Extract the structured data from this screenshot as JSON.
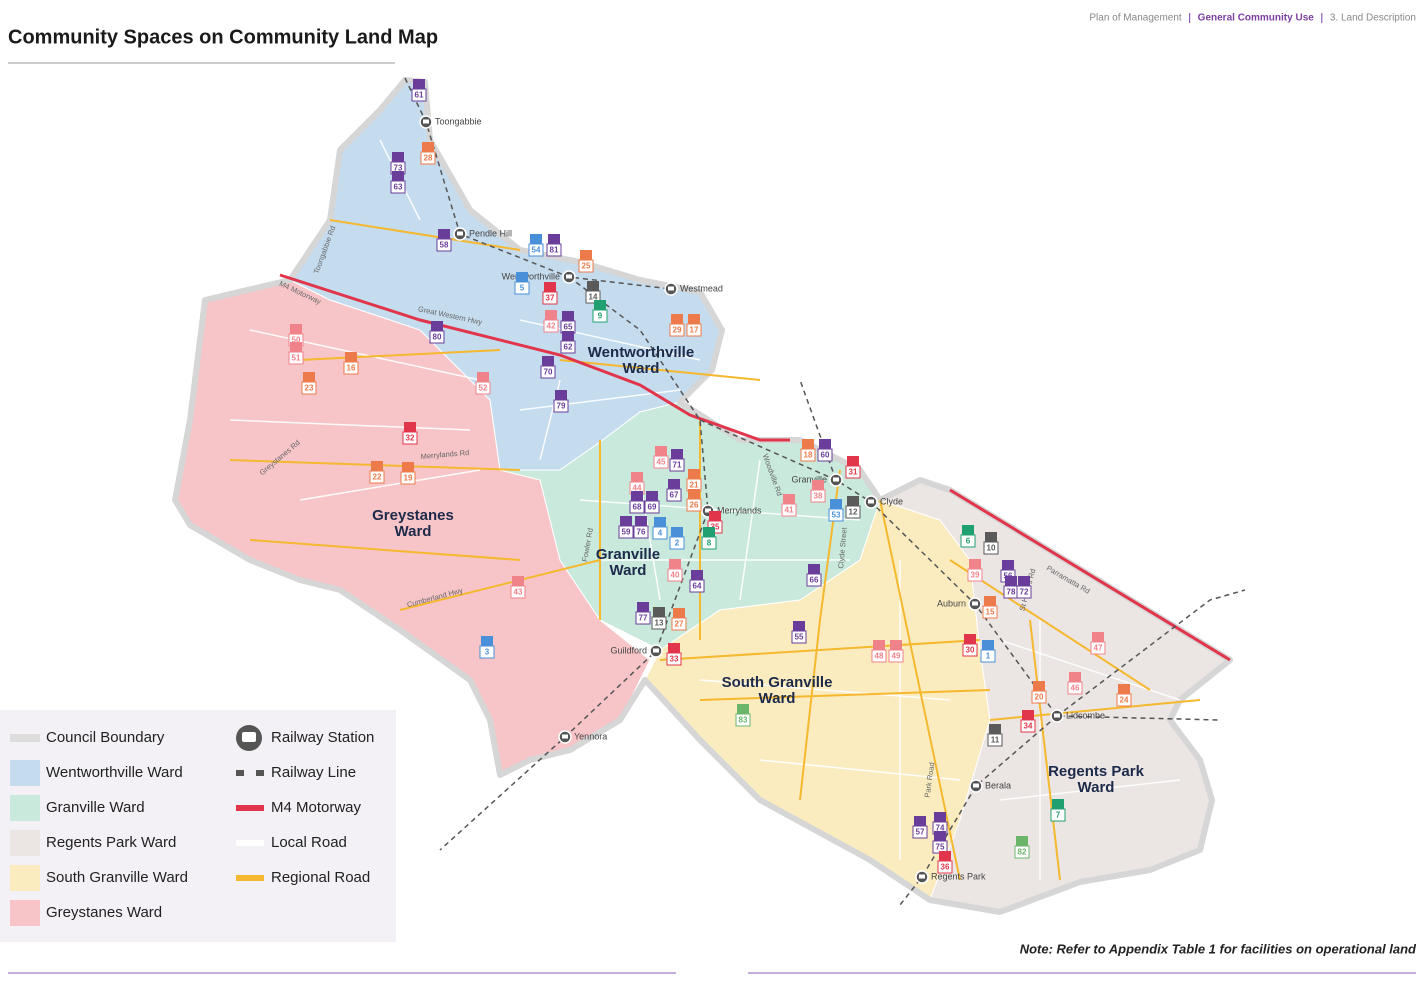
{
  "header": {
    "title": "Community Spaces on Community Land Map",
    "breadcrumb": [
      "Plan of Management",
      "General Community Use",
      "3. Land Description"
    ]
  },
  "wards": [
    [
      "Wentworthville",
      "Ward"
    ],
    [
      "Greystanes",
      "Ward"
    ],
    [
      "Granville",
      "Ward"
    ],
    [
      "South Granville",
      "Ward"
    ],
    [
      "Regents Park",
      "Ward"
    ]
  ],
  "stations": [
    "Toongabbie",
    "Pendle Hill",
    "Wentworthville",
    "Westmead",
    "Merrylands",
    "Granville",
    "Clyde",
    "Auburn",
    "Guildford",
    "Lidcombe",
    "Berala",
    "Regents Park",
    "Yennora"
  ],
  "roads": [
    "Toongabbie Rd",
    "M4 Motorway",
    "Great Western Hwy",
    "Greystanes Rd",
    "Merrylands Rd",
    "Cumberland Hwy",
    "Fowler Rd",
    "Woodville Rd",
    "Clyde Street",
    "Parramatta Rd",
    "St Hilliers Rd",
    "Park Road"
  ],
  "markers": [
    "61",
    "73",
    "63",
    "28",
    "58",
    "54",
    "81",
    "25",
    "5",
    "37",
    "14",
    "9",
    "42",
    "65",
    "62",
    "29",
    "17",
    "80",
    "50",
    "51",
    "16",
    "70",
    "23",
    "52",
    "79",
    "32",
    "45",
    "71",
    "18",
    "60",
    "31",
    "22",
    "19",
    "44",
    "21",
    "26",
    "67",
    "68",
    "69",
    "38",
    "41",
    "53",
    "12",
    "59",
    "76",
    "35",
    "4",
    "2",
    "8",
    "6",
    "10",
    "40",
    "64",
    "66",
    "39",
    "56",
    "78",
    "72",
    "43",
    "15",
    "77",
    "13",
    "27",
    "55",
    "3",
    "33",
    "48",
    "49",
    "30",
    "1",
    "47",
    "46",
    "20",
    "24",
    "34",
    "83",
    "11",
    "7",
    "57",
    "74",
    "75",
    "82",
    "36"
  ],
  "legend": {
    "areas": [
      "Council Boundary",
      "Wentworthville Ward",
      "Granville Ward",
      "Regents Park Ward",
      "South Granville Ward",
      "Greystanes Ward"
    ],
    "lines": [
      "Railway Station",
      "Railway Line",
      "M4 Motorway",
      "Local Road",
      "Regional Road"
    ]
  },
  "note": "Note: Refer to Appendix Table 1 for facilities on operational land"
}
